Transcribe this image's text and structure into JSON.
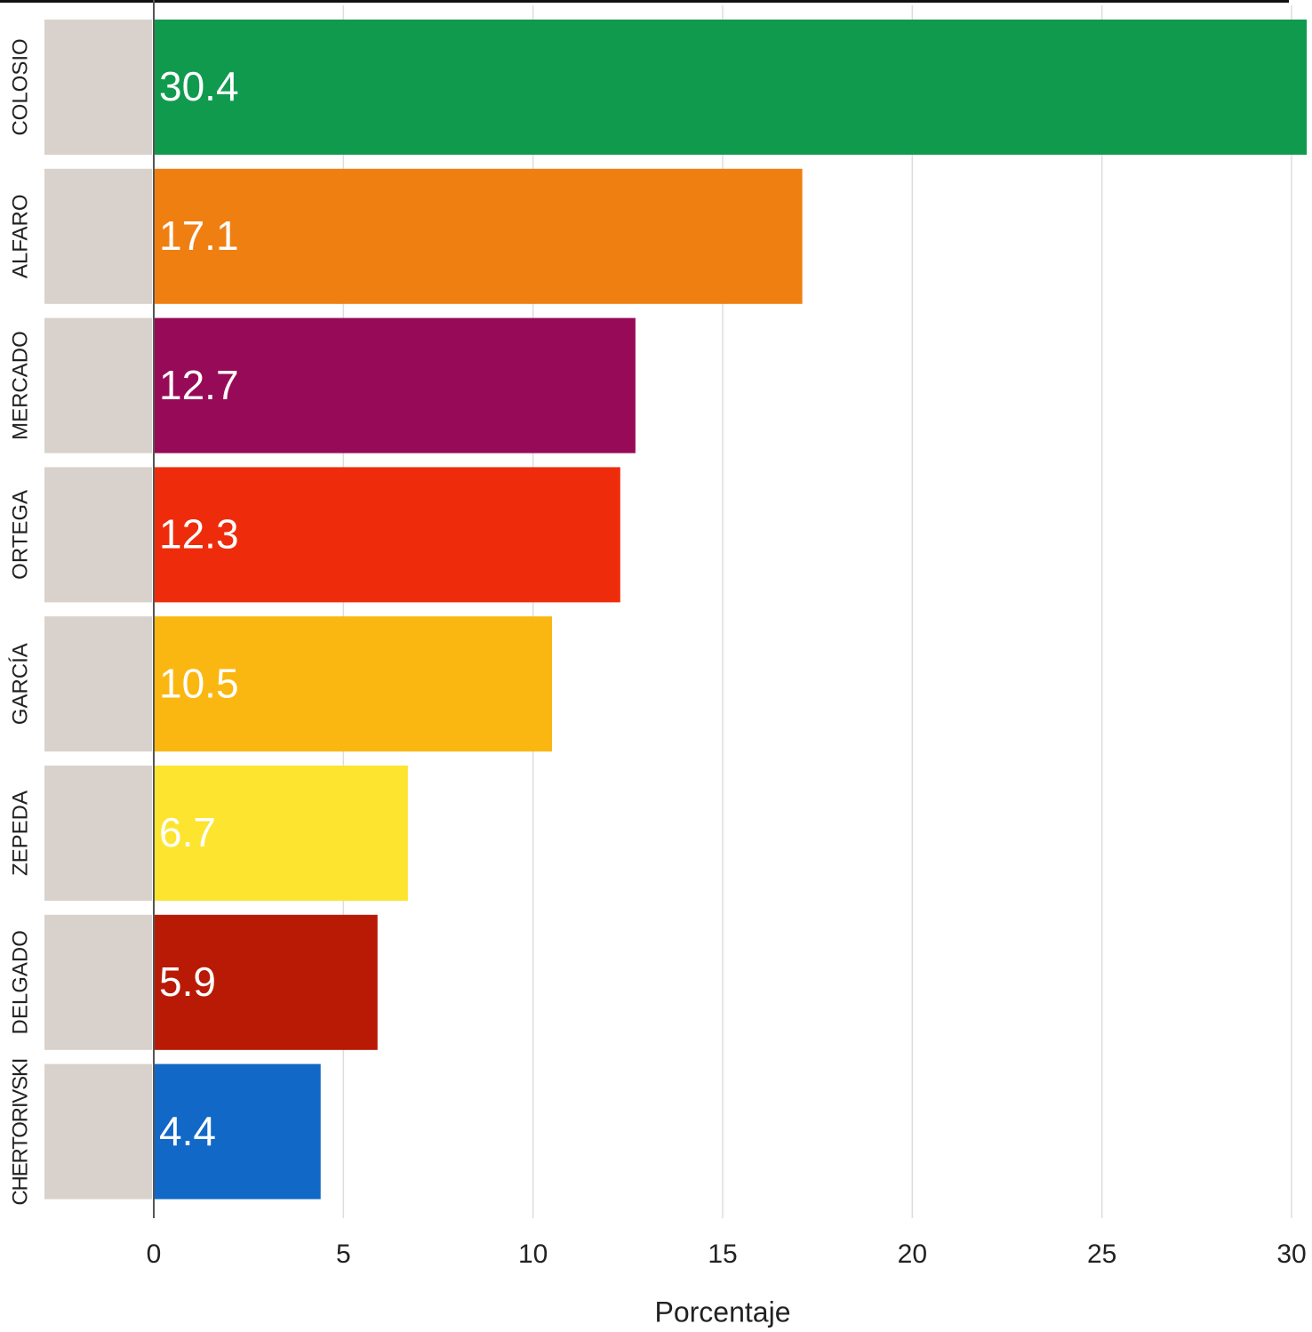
{
  "chart_data": {
    "type": "bar",
    "orientation": "horizontal",
    "categories": [
      "COLOSIO",
      "ALFARO",
      "MERCADO",
      "ORTEGA",
      "GARCÍA",
      "ZEPEDA",
      "DELGADO",
      "CHERTORIVSKI"
    ],
    "values": [
      30.4,
      17.1,
      12.7,
      12.3,
      10.5,
      6.7,
      5.9,
      4.4
    ],
    "colors": [
      "#109a4e",
      "#f07f12",
      "#970a57",
      "#ee2c0c",
      "#fbb711",
      "#fde42e",
      "#b81a06",
      "#1168c6"
    ],
    "x_label": "Porcentaje",
    "xlim": [
      0,
      30
    ],
    "xticks": [
      0,
      5,
      10,
      15,
      20,
      25,
      30
    ],
    "grid": true
  }
}
